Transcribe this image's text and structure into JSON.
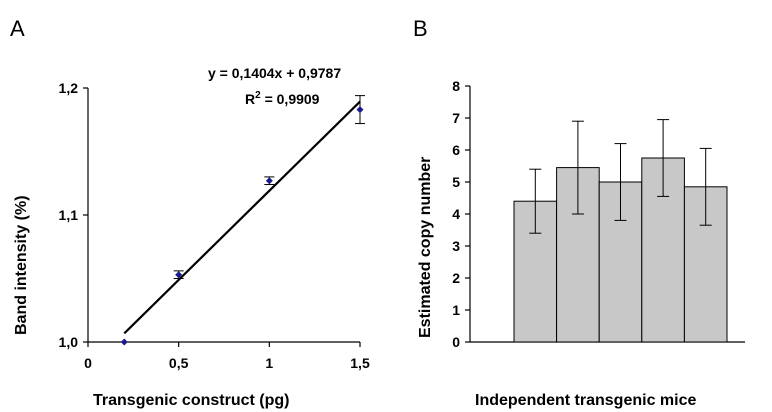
{
  "chart_data": [
    {
      "panel": "A",
      "type": "scatter",
      "xlabel": "Transgenic construct (pg)",
      "ylabel": "Band intensity (%)",
      "xlim": [
        0,
        1.5
      ],
      "ylim": [
        1.0,
        1.2
      ],
      "xticks": [
        0,
        0.5,
        1,
        1.5
      ],
      "xtick_labels": [
        "0",
        "0,5",
        "1",
        "1,5"
      ],
      "yticks": [
        1.0,
        1.1,
        1.2
      ],
      "ytick_labels": [
        "1,0",
        "1,1",
        "1,2"
      ],
      "points": [
        {
          "x": 0.2,
          "y": 1.0,
          "err": 0
        },
        {
          "x": 0.5,
          "y": 1.053,
          "err": 0.003
        },
        {
          "x": 1.0,
          "y": 1.127,
          "err": 0.003
        },
        {
          "x": 1.5,
          "y": 1.183,
          "err": 0.011
        }
      ],
      "fit": {
        "slope": 0.1404,
        "intercept": 0.9787,
        "x_range": [
          0.2,
          1.5
        ]
      },
      "equation": "y = 0,1404x + 0,9787",
      "r2_prefix": "R",
      "r2_sup": "2",
      "r2_value": " = 0,9909",
      "marker_color": "#1a1a8c"
    },
    {
      "panel": "B",
      "type": "bar",
      "xlabel": "Independent transgenic mice",
      "ylabel": "Estimated copy number",
      "ylim": [
        0,
        8
      ],
      "yticks": [
        0,
        1,
        2,
        3,
        4,
        5,
        6,
        7,
        8
      ],
      "values": [
        4.4,
        5.45,
        5.0,
        5.75,
        4.85
      ],
      "errors": [
        1.0,
        1.45,
        1.2,
        1.2,
        1.2
      ],
      "bar_color": "#c8c8c8"
    }
  ]
}
